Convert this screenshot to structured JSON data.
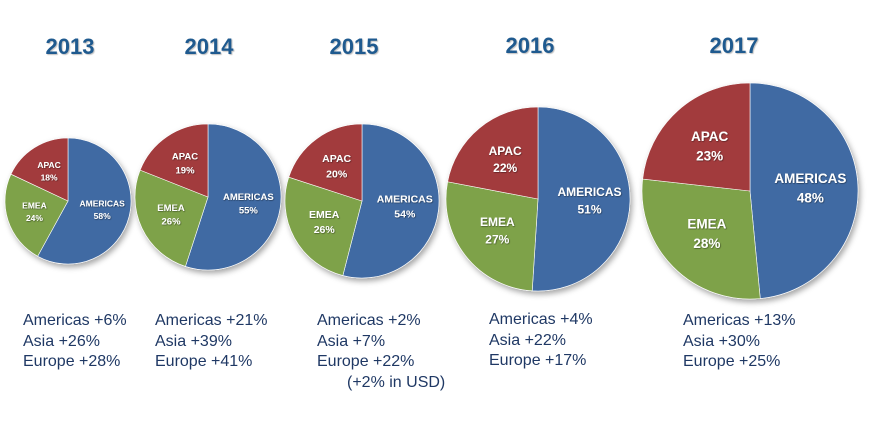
{
  "colors": {
    "americas": "#3f6aa3",
    "emea": "#7ea24a",
    "apac": "#a23b3d",
    "title": "#1f5a8f",
    "notes": "#1f3864",
    "label": "#ffffff"
  },
  "chart_data": [
    {
      "type": "pie",
      "title": "2013",
      "labels": [
        "AMERICAS",
        "EMEA",
        "APAC"
      ],
      "values": [
        58,
        24,
        18
      ],
      "value_labels": [
        "58%",
        "24%",
        "18%"
      ],
      "notes": [
        "Americas +6%",
        "Asia +26%",
        "Europe +28%"
      ]
    },
    {
      "type": "pie",
      "title": "2014",
      "labels": [
        "AMERICAS",
        "EMEA",
        "APAC"
      ],
      "values": [
        55,
        26,
        19
      ],
      "value_labels": [
        "55%",
        "26%",
        "19%"
      ],
      "notes": [
        "Americas +21%",
        "Asia +39%",
        "Europe +41%"
      ]
    },
    {
      "type": "pie",
      "title": "2015",
      "labels": [
        "AMERICAS",
        "EMEA",
        "APAC"
      ],
      "values": [
        54,
        26,
        20
      ],
      "value_labels": [
        "54%",
        "26%",
        "20%"
      ],
      "notes": [
        "Americas +2%",
        "Asia +7%",
        "Europe +22%",
        "(+2% in USD)"
      ]
    },
    {
      "type": "pie",
      "title": "2016",
      "labels": [
        "AMERICAS",
        "EMEA",
        "APAC"
      ],
      "values": [
        51,
        27,
        22
      ],
      "value_labels": [
        "51%",
        "27%",
        "22%"
      ],
      "notes": [
        "Americas +4%",
        "Asia +22%",
        "Europe +17%"
      ]
    },
    {
      "type": "pie",
      "title": "2017",
      "labels": [
        "AMERICAS",
        "EMEA",
        "APAC"
      ],
      "values": [
        48,
        28,
        23
      ],
      "value_labels": [
        "48%",
        "28%",
        "23%"
      ],
      "notes": [
        "Americas +13%",
        "Asia +30%",
        "Europe +25%"
      ]
    }
  ]
}
